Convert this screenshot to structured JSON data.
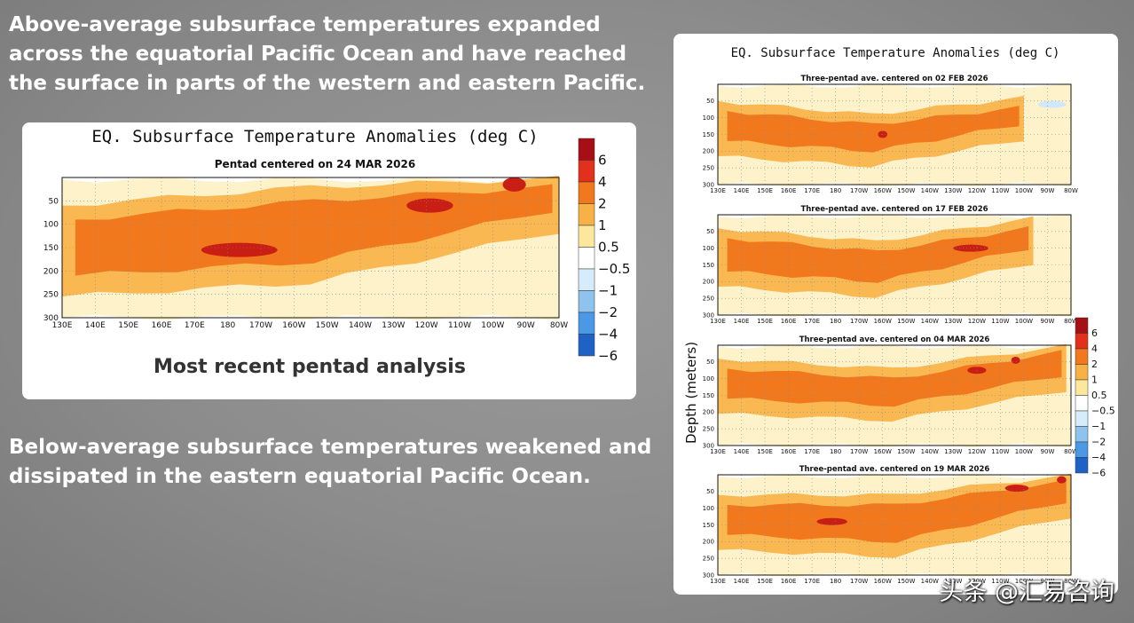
{
  "headline_top": "Above-average subsurface temperatures expanded across the equatorial Pacific Ocean and have reached the surface in parts of the western and eastern Pacific.",
  "headline_bottom": "Below-average subsurface temperatures weakened and dissipated in the eastern equatorial Pacific Ocean.",
  "main_panel": {
    "title": "EQ. Subsurface Temperature Anomalies (deg C)",
    "subtitle": "Pentad centered on 24 MAR 2026",
    "caption": "Most recent pentad analysis"
  },
  "side_panel": {
    "title": "EQ. Subsurface Temperature Anomalies (deg C)",
    "ylabel": "Depth (meters)"
  },
  "watermark": "头条 @汇易咨询",
  "colorbar": {
    "labels": [
      "6",
      "4",
      "2",
      "1",
      "0.5",
      "−0.5",
      "−1",
      "−2",
      "−4",
      "−6"
    ],
    "colors": [
      "#a50f15",
      "#e2301d",
      "#f2781d",
      "#f8b145",
      "#fbe89c",
      "#ffffff",
      "#d6ecfa",
      "#8ec3ee",
      "#4a98e6",
      "#1f62c6"
    ]
  },
  "chart_data": [
    {
      "type": "heatmap",
      "title": "EQ. Subsurface Temperature Anomalies (deg C)",
      "subtitle": "Pentad centered on 24 MAR 2026",
      "x_ticks": [
        "130E",
        "140E",
        "150E",
        "160E",
        "170E",
        "180",
        "170W",
        "160W",
        "150W",
        "140W",
        "130W",
        "120W",
        "110W",
        "100W",
        "90W",
        "80W"
      ],
      "y_ticks": [
        "50",
        "100",
        "150",
        "200",
        "250",
        "300"
      ],
      "xlim": [
        130,
        280
      ],
      "ylim": [
        300,
        0
      ],
      "z_levels": [
        -6,
        -4,
        -2,
        -1,
        -0.5,
        0.5,
        1,
        2,
        4,
        6
      ],
      "features": [
        {
          "level": 2,
          "x_range": [
            134,
            278
          ],
          "depth_top": [
            90,
            50,
            20
          ],
          "depth_bottom": [
            210,
            180,
            70
          ],
          "note_on_center": "warm band sloping upward eastward"
        },
        {
          "level": 4,
          "x_range": [
            172,
            195
          ],
          "center_depth": 155
        },
        {
          "level": 4,
          "x_range": [
            234,
            248
          ],
          "center_depth": 60
        },
        {
          "level": 4,
          "x_range": [
            263,
            270
          ],
          "center_depth": 15
        }
      ]
    },
    {
      "type": "heatmap",
      "subtitle": "Three-pentad ave. centered on 02 FEB 2026",
      "x_ticks": [
        "130E",
        "140E",
        "150E",
        "160E",
        "170E",
        "180",
        "170W",
        "160W",
        "150W",
        "140W",
        "130W",
        "120W",
        "110W",
        "100W",
        "90W",
        "80W"
      ],
      "y_ticks": [
        "50",
        "100",
        "150",
        "200",
        "250",
        "300"
      ],
      "xlim": [
        130,
        280
      ],
      "ylim": [
        300,
        0
      ],
      "features": [
        {
          "level": 2,
          "x_range": [
            134,
            258
          ],
          "depth_top": [
            80,
            120,
            70
          ],
          "depth_bottom": [
            170,
            200,
            120
          ]
        },
        {
          "level": 4,
          "x_range": [
            198,
            202
          ],
          "center_depth": 150
        },
        {
          "level": -1,
          "x_range": [
            266,
            278
          ],
          "center_depth": 60
        }
      ]
    },
    {
      "type": "heatmap",
      "subtitle": "Three-pentad ave. centered on 17 FEB 2026",
      "x_ticks": [
        "130E",
        "140E",
        "150E",
        "160E",
        "170E",
        "180",
        "170W",
        "160W",
        "150W",
        "140W",
        "130W",
        "120W",
        "110W",
        "100W",
        "90W",
        "80W"
      ],
      "y_ticks": [
        "50",
        "100",
        "150",
        "200",
        "250",
        "300"
      ],
      "xlim": [
        130,
        280
      ],
      "ylim": [
        300,
        0
      ],
      "features": [
        {
          "level": 2,
          "x_range": [
            134,
            262
          ],
          "depth_top": [
            70,
            110,
            40
          ],
          "depth_bottom": [
            170,
            200,
            100
          ]
        },
        {
          "level": 4,
          "x_range": [
            230,
            245
          ],
          "center_depth": 100
        }
      ]
    },
    {
      "type": "heatmap",
      "subtitle": "Three-pentad ave. centered on 04 MAR 2026",
      "x_ticks": [
        "130E",
        "140E",
        "150E",
        "160E",
        "170E",
        "180",
        "170W",
        "160W",
        "150W",
        "140W",
        "130W",
        "120W",
        "110W",
        "100W",
        "90W",
        "80W"
      ],
      "y_ticks": [
        "50",
        "100",
        "150",
        "200",
        "250",
        "300"
      ],
      "xlim": [
        130,
        280
      ],
      "ylim": [
        300,
        0
      ],
      "features": [
        {
          "level": 2,
          "x_range": [
            134,
            276
          ],
          "depth_top": [
            70,
            100,
            20
          ],
          "depth_bottom": [
            160,
            180,
            90
          ]
        },
        {
          "level": 4,
          "x_range": [
            236,
            244
          ],
          "center_depth": 75
        },
        {
          "level": 4,
          "x_range": [
            255,
            258
          ],
          "center_depth": 45
        }
      ]
    },
    {
      "type": "heatmap",
      "subtitle": "Three-pentad ave. centered on 19 MAR 2026",
      "x_ticks": [
        "130E",
        "140E",
        "150E",
        "160E",
        "170E",
        "180",
        "170W",
        "160W",
        "150W",
        "140W",
        "130W",
        "120W",
        "110W",
        "100W",
        "90W",
        "80W"
      ],
      "y_ticks": [
        "50",
        "100",
        "150",
        "200",
        "250",
        "300"
      ],
      "xlim": [
        130,
        280
      ],
      "ylim": [
        300,
        0
      ],
      "features": [
        {
          "level": 2,
          "x_range": [
            134,
            278
          ],
          "depth_top": [
            90,
            90,
            20
          ],
          "depth_bottom": [
            180,
            200,
            80
          ]
        },
        {
          "level": 4,
          "x_range": [
            172,
            185
          ],
          "center_depth": 140
        },
        {
          "level": 4,
          "x_range": [
            252,
            262
          ],
          "center_depth": 40
        },
        {
          "level": 4,
          "x_range": [
            274,
            278
          ],
          "center_depth": 15
        }
      ]
    }
  ]
}
